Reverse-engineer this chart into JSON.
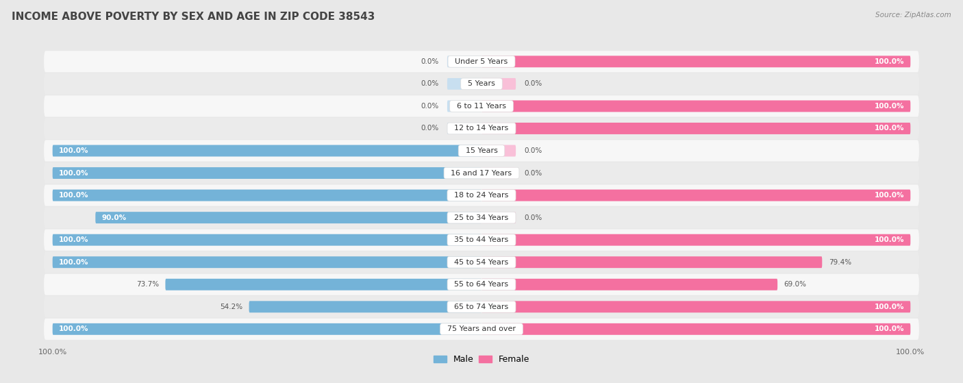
{
  "title": "INCOME ABOVE POVERTY BY SEX AND AGE IN ZIP CODE 38543",
  "source": "Source: ZipAtlas.com",
  "categories": [
    "Under 5 Years",
    "5 Years",
    "6 to 11 Years",
    "12 to 14 Years",
    "15 Years",
    "16 and 17 Years",
    "18 to 24 Years",
    "25 to 34 Years",
    "35 to 44 Years",
    "45 to 54 Years",
    "55 to 64 Years",
    "65 to 74 Years",
    "75 Years and over"
  ],
  "male": [
    0.0,
    0.0,
    0.0,
    0.0,
    100.0,
    100.0,
    100.0,
    90.0,
    100.0,
    100.0,
    73.7,
    54.2,
    100.0
  ],
  "female": [
    100.0,
    0.0,
    100.0,
    100.0,
    0.0,
    0.0,
    100.0,
    0.0,
    100.0,
    79.4,
    69.0,
    100.0,
    100.0
  ],
  "male_color": "#74b3d8",
  "female_color": "#f470a0",
  "male_light_color": "#c8dff0",
  "female_light_color": "#f9c0d8",
  "row_bg_light": "#f7f7f7",
  "row_bg_dark": "#ebebeb",
  "bg_color": "#e8e8e8",
  "title_fontsize": 11,
  "label_fontsize": 8,
  "value_fontsize": 7.5,
  "bar_height": 0.52,
  "stub_size": 8.0
}
